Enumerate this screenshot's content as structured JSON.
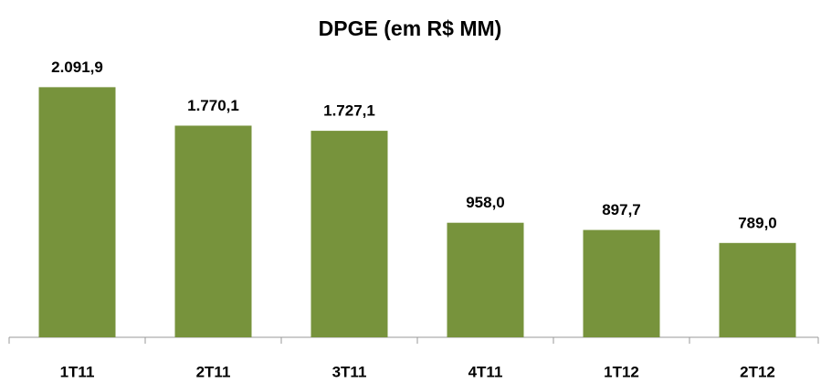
{
  "chart_data": {
    "type": "bar",
    "title": "DPGE (em R$ MM)",
    "categories": [
      "1T11",
      "2T11",
      "3T11",
      "4T11",
      "1T12",
      "2T12"
    ],
    "values": [
      2091.9,
      1770.1,
      1727.1,
      958.0,
      897.7,
      789.0
    ],
    "value_labels": [
      "2.091,9",
      "1.770,1",
      "1.727,1",
      "958,0",
      "897,7",
      "789,0"
    ],
    "color": "#77933c",
    "ylim": [
      0,
      2500
    ]
  }
}
